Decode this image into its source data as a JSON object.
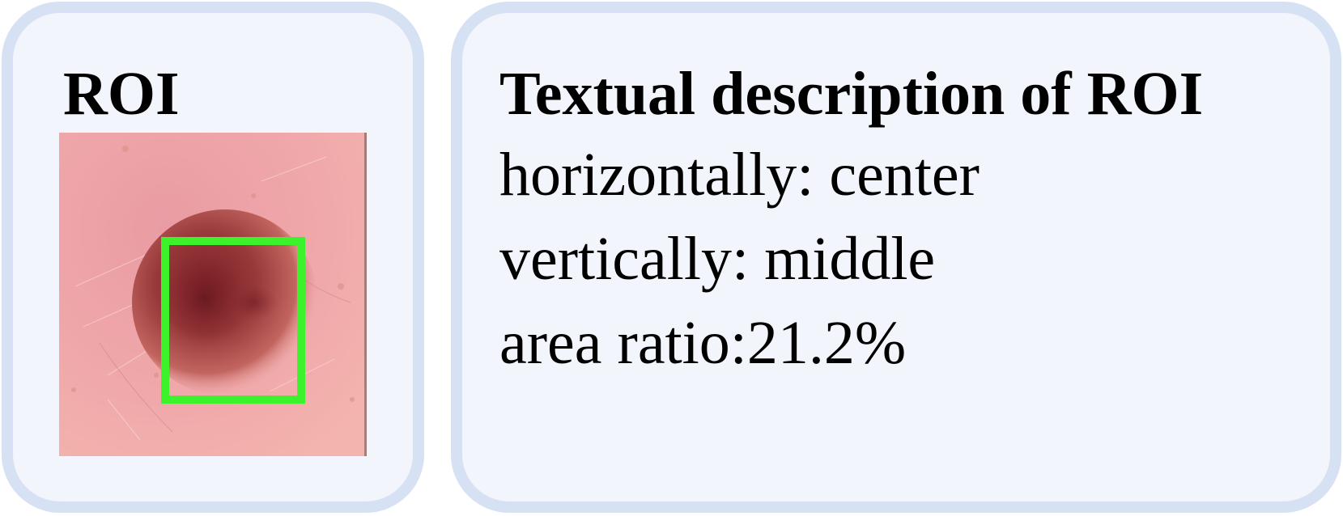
{
  "roi_panel": {
    "title": "ROI",
    "image": {
      "icon": "dermoscopy-lesion-image",
      "skin_color": "#eda3a6",
      "lesion_color": "#8a2a2e",
      "box_color": "#3cf22a"
    }
  },
  "description_panel": {
    "title": "Textual description of ROI",
    "lines": [
      "horizontally: center",
      "vertically: middle",
      "area ratio:21.2%"
    ]
  },
  "colors": {
    "panel_fill": "#f2f5fb",
    "panel_border": "#d6e1f4"
  }
}
